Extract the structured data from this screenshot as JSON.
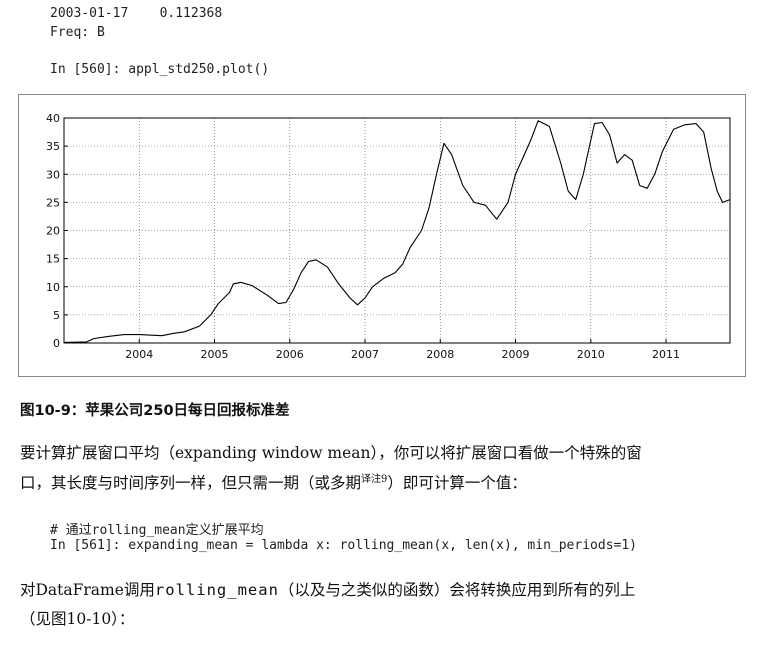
{
  "top_output": {
    "line1": "2003-01-17    0.112368",
    "line2": "Freq: B"
  },
  "input_560": "In [560]: appl_std250.plot()",
  "caption": "图10-9：苹果公司250日每日回报标准差",
  "paragraph1": {
    "line1": "要计算扩展窗口平均（expanding window mean），你可以将扩展窗口看做一个特殊的窗",
    "line2_a": "口，其长度与时间序列一样，但只需一期（或多期",
    "line2_sup": "译注9",
    "line2_b": "）即可计算一个值："
  },
  "code_block": {
    "comment": "# 通过rolling_mean定义扩展平均",
    "input_561": "In [561]: expanding_mean = lambda x: rolling_mean(x, len(x), min_periods=1)"
  },
  "paragraph2": {
    "line1_a": "对DataFrame调用",
    "line1_code": "rolling_mean",
    "line1_b": "（以及与之类似的函数）会将转换应用到所有的列上",
    "line2": "（见图10-10）："
  },
  "chart_data": {
    "type": "line",
    "x_ticks": [
      "2004",
      "2005",
      "2006",
      "2007",
      "2008",
      "2009",
      "2010",
      "2011"
    ],
    "y_ticks": [
      "0",
      "5",
      "10",
      "15",
      "20",
      "25",
      "30",
      "35",
      "40"
    ],
    "ylim": [
      0,
      40
    ],
    "xlim": [
      2003.0,
      2011.85
    ],
    "grid": true,
    "line_color": "#000000",
    "series": [
      {
        "x": [
          2003.0,
          2003.3,
          2003.4,
          2003.6,
          2003.8,
          2004.0,
          2004.3,
          2004.45,
          2004.6,
          2004.8,
          2004.95,
          2005.05,
          2005.2,
          2005.25,
          2005.35,
          2005.5,
          2005.7,
          2005.85,
          2005.95,
          2006.05,
          2006.15,
          2006.25,
          2006.35,
          2006.5,
          2006.65,
          2006.8,
          2006.9,
          2007.0,
          2007.1,
          2007.25,
          2007.4,
          2007.5,
          2007.6,
          2007.75,
          2007.85,
          2007.95,
          2008.05,
          2008.15,
          2008.3,
          2008.45,
          2008.6,
          2008.75,
          2008.9,
          2009.0,
          2009.1,
          2009.2,
          2009.3,
          2009.45,
          2009.6,
          2009.7,
          2009.8,
          2009.9,
          2009.95,
          2010.05,
          2010.15,
          2010.25,
          2010.35,
          2010.45,
          2010.55,
          2010.65,
          2010.75,
          2010.85,
          2010.95,
          2011.1,
          2011.25,
          2011.4,
          2011.5,
          2011.6,
          2011.68,
          2011.75,
          2011.85
        ],
        "y": [
          0.1,
          0.2,
          0.8,
          1.2,
          1.5,
          1.5,
          1.3,
          1.7,
          2.0,
          3.0,
          5.0,
          7.0,
          9.0,
          10.5,
          10.8,
          10.2,
          8.5,
          7.0,
          7.2,
          9.5,
          12.5,
          14.5,
          14.8,
          13.5,
          10.5,
          8.0,
          6.8,
          8.0,
          10.0,
          11.5,
          12.5,
          14.0,
          17.0,
          20.0,
          24.0,
          30.0,
          35.5,
          33.5,
          28.0,
          25.0,
          24.5,
          22.0,
          25.0,
          30.0,
          33.0,
          36.0,
          39.5,
          38.5,
          32.0,
          27.0,
          25.5,
          30.0,
          33.0,
          39.0,
          39.2,
          37.0,
          32.0,
          33.5,
          32.5,
          28.0,
          27.5,
          30.0,
          34.0,
          38.0,
          38.8,
          39.0,
          37.5,
          31.0,
          27.0,
          25.0,
          25.5
        ]
      }
    ]
  }
}
